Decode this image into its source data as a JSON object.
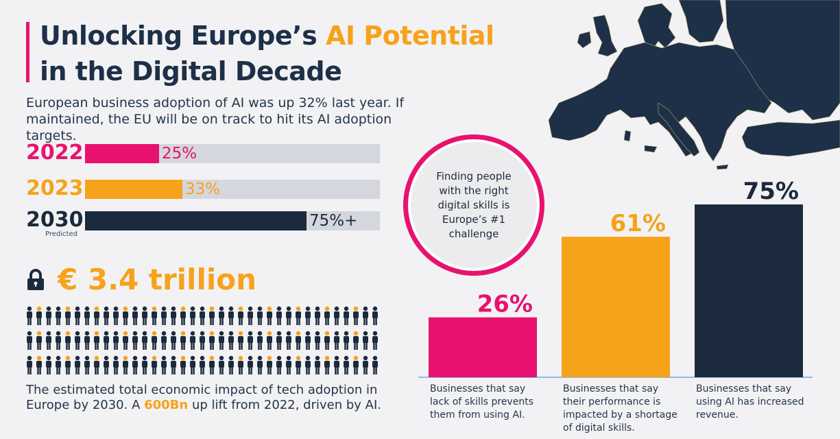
{
  "title": {
    "line1_start": "Unlocking Europe’s ",
    "line1_highlight": "AI Potential",
    "line2": "in the Digital Decade"
  },
  "subtitle": "European business adoption of AI was up 32% last year. If maintained, the EU will be on track to hit its AI adoption targets.",
  "adoption": [
    {
      "year": "2022",
      "value": 25,
      "label": "25%",
      "color": "#e8126e"
    },
    {
      "year": "2023",
      "value": 33,
      "label": "33%",
      "color": "#f7a21b"
    },
    {
      "year": "2030",
      "value": 75,
      "label": "75%+",
      "color": "#1b2a3c",
      "note": "Predicted"
    }
  ],
  "impact": {
    "amount": "€ 3.4 trillion",
    "text_before": "The estimated total economic impact of tech adoption in Europe by 2030. A ",
    "text_highlight": "600Bn",
    "text_after": " up lift from 2022, driven by AI."
  },
  "circle_text": "Finding people with the right digital skills is Europe’s #1 challenge",
  "colors": {
    "pink": "#e8126e",
    "orange": "#f7a21b",
    "navy": "#1b2a3c",
    "track": "#d4d7dd"
  },
  "chart_data": {
    "type": "bar",
    "ylim": [
      0,
      100
    ],
    "categories": [
      "Businesses that say lack of skills prevents them from using AI.",
      "Businesses that say their performance is impacted by a shortage of digital skills.",
      "Businesses that say using AI has increased revenue."
    ],
    "values": [
      26,
      61,
      75
    ],
    "labels": [
      "26%",
      "61%",
      "75%"
    ],
    "colors": [
      "#e8126e",
      "#f7a21b",
      "#1b2a3c"
    ]
  }
}
